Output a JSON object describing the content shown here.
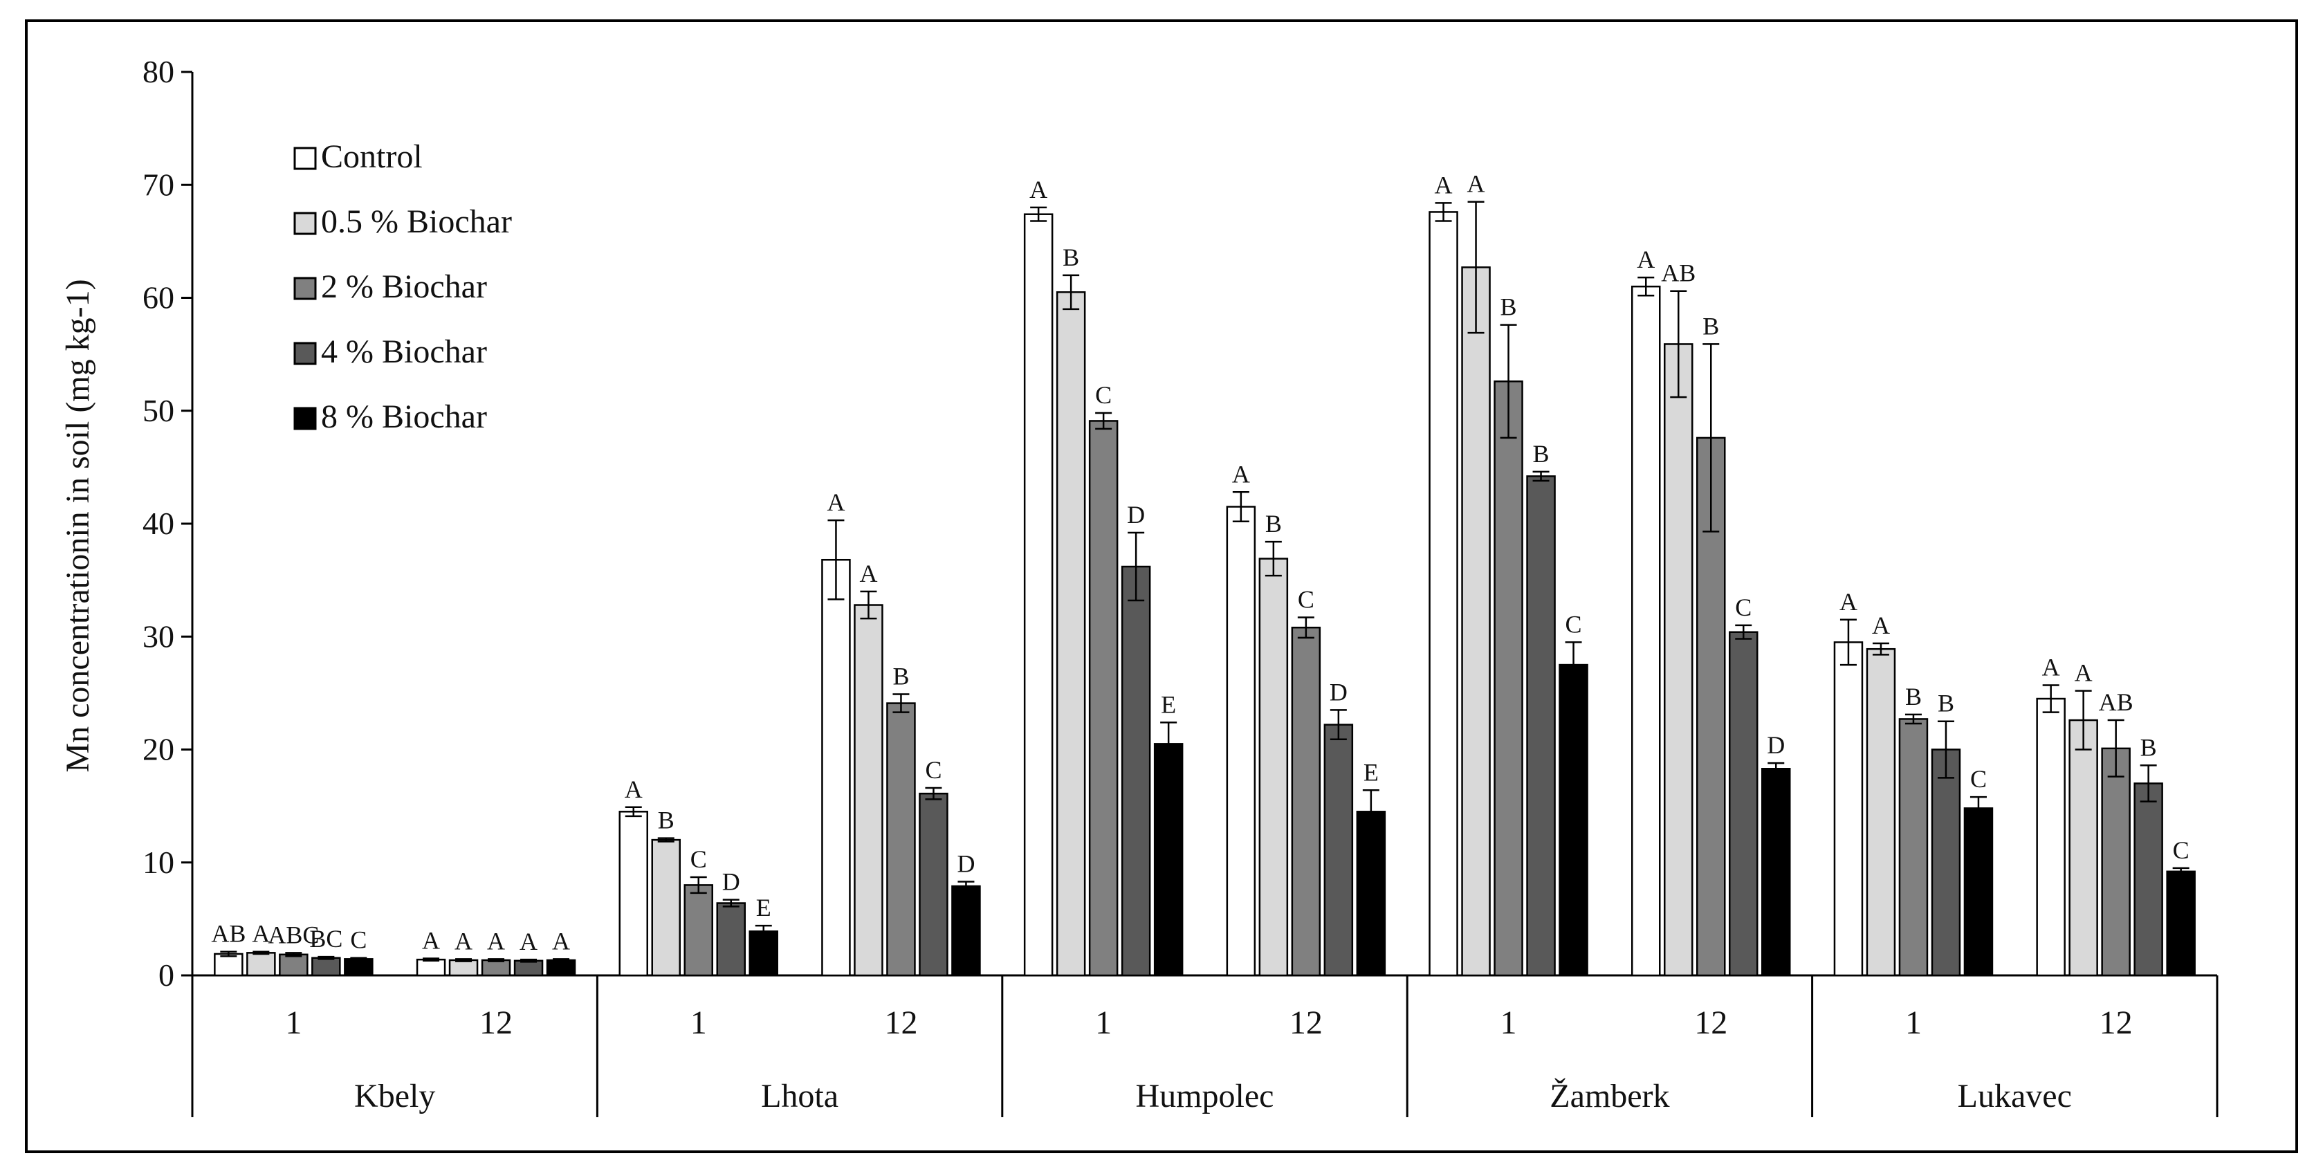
{
  "chart_data": {
    "type": "bar",
    "ylabel": "Mn concentrationin in soil (mg kg-1)",
    "ylim": [
      0,
      80
    ],
    "yticks": [
      0,
      10,
      20,
      30,
      40,
      50,
      60,
      70,
      80
    ],
    "legend_position": "top-left",
    "grid": false,
    "colors": {
      "Control": "#ffffff",
      "0.5 % Biochar": "#d9d9d9",
      "2 % Biochar": "#808080",
      "4 % Biochar": "#595959",
      "8 % Biochar": "#000000"
    },
    "sites": [
      "Kbely",
      "Lhota",
      "Humpolec",
      "Žamberk",
      "Lukavec"
    ],
    "categories": [
      {
        "site": "Kbely",
        "time": "1"
      },
      {
        "site": "Kbely",
        "time": "12"
      },
      {
        "site": "Lhota",
        "time": "1"
      },
      {
        "site": "Lhota",
        "time": "12"
      },
      {
        "site": "Humpolec",
        "time": "1"
      },
      {
        "site": "Humpolec",
        "time": "12"
      },
      {
        "site": "Žamberk",
        "time": "1"
      },
      {
        "site": "Žamberk",
        "time": "12"
      },
      {
        "site": "Lukavec",
        "time": "1"
      },
      {
        "site": "Lukavec",
        "time": "12"
      }
    ],
    "series": [
      {
        "name": "Control",
        "values": [
          1.9,
          1.4,
          14.5,
          36.8,
          67.4,
          41.5,
          67.6,
          61.0,
          29.5,
          24.5
        ],
        "errors": [
          0.2,
          0.1,
          0.4,
          3.5,
          0.6,
          1.3,
          0.8,
          0.8,
          2.0,
          1.2
        ],
        "labels": [
          "AB",
          "A",
          "A",
          "A",
          "A",
          "A",
          "A",
          "A",
          "A",
          "A"
        ]
      },
      {
        "name": "0.5 % Biochar",
        "values": [
          2.0,
          1.35,
          12.0,
          32.8,
          60.5,
          36.9,
          62.7,
          55.9,
          28.9,
          22.6
        ],
        "errors": [
          0.1,
          0.1,
          0.15,
          1.2,
          1.5,
          1.5,
          5.8,
          4.7,
          0.5,
          2.6
        ],
        "labels": [
          "A",
          "A",
          "B",
          "A",
          "B",
          "B",
          "A",
          "AB",
          "A",
          "A"
        ]
      },
      {
        "name": "2 % Biochar",
        "values": [
          1.85,
          1.35,
          8.0,
          24.1,
          49.1,
          30.8,
          52.6,
          47.6,
          22.7,
          20.1
        ],
        "errors": [
          0.15,
          0.1,
          0.7,
          0.8,
          0.7,
          0.9,
          5.0,
          8.3,
          0.4,
          2.5
        ],
        "labels": [
          "ABC",
          "A",
          "C",
          "B",
          "C",
          "C",
          "B",
          "B",
          "B",
          "AB"
        ]
      },
      {
        "name": "4 % Biochar",
        "values": [
          1.55,
          1.3,
          6.4,
          16.1,
          36.2,
          22.2,
          44.2,
          30.4,
          20.0,
          17.0
        ],
        "errors": [
          0.1,
          0.1,
          0.3,
          0.5,
          3.0,
          1.3,
          0.4,
          0.6,
          2.5,
          1.6
        ],
        "labels": [
          "BC",
          "A",
          "D",
          "C",
          "D",
          "D",
          "B",
          "C",
          "B",
          "B"
        ]
      },
      {
        "name": "8 % Biochar",
        "values": [
          1.45,
          1.35,
          3.9,
          7.9,
          20.5,
          14.5,
          27.5,
          18.3,
          14.8,
          9.2
        ],
        "errors": [
          0.1,
          0.1,
          0.5,
          0.4,
          1.9,
          1.9,
          2.0,
          0.5,
          1.0,
          0.3
        ],
        "labels": [
          "C",
          "A",
          "E",
          "D",
          "E",
          "E",
          "C",
          "D",
          "C",
          "C"
        ]
      }
    ]
  }
}
